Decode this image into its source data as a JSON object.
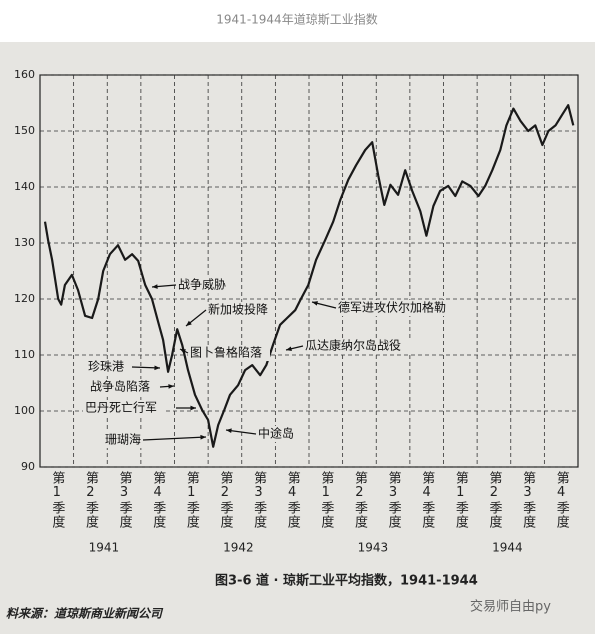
{
  "header": {
    "title": "1941-1944年道琼斯工业指数"
  },
  "chart_data": {
    "type": "line",
    "categories": [
      "第1季度",
      "第2季度",
      "第3季度",
      "第4季度",
      "第1季度",
      "第2季度",
      "第3季度",
      "第4季度",
      "第1季度",
      "第2季度",
      "第3季度",
      "第4季度",
      "第1季度",
      "第2季度",
      "第3季度",
      "第4季度"
    ],
    "years": [
      "1941",
      "1942",
      "1943",
      "1944"
    ],
    "xlim": [
      0,
      16
    ],
    "ylim": [
      90,
      160
    ],
    "yticks": [
      90,
      100,
      110,
      120,
      130,
      140,
      150,
      160
    ],
    "grid": true,
    "series": [
      {
        "color": "#1a1a1a",
        "x": [
          0.15,
          0.24,
          0.36,
          0.54,
          0.63,
          0.74,
          0.95,
          1.13,
          1.34,
          1.55,
          1.73,
          1.88,
          2.08,
          2.32,
          2.53,
          2.74,
          2.92,
          3.13,
          3.33,
          3.51,
          3.66,
          3.81,
          3.93,
          4.08,
          4.23,
          4.4,
          4.61,
          4.82,
          5.0,
          5.15,
          5.3,
          5.48,
          5.65,
          5.89,
          6.1,
          6.31,
          6.55,
          6.73,
          6.93,
          7.14,
          7.35,
          7.59,
          7.74,
          7.98,
          8.21,
          8.48,
          8.72,
          8.93,
          9.17,
          9.4,
          9.67,
          9.88,
          10.06,
          10.24,
          10.42,
          10.65,
          10.86,
          11.07,
          11.31,
          11.49,
          11.7,
          11.9,
          12.14,
          12.35,
          12.56,
          12.8,
          13.04,
          13.24,
          13.45,
          13.69,
          13.87,
          14.08,
          14.29,
          14.52,
          14.73,
          14.94,
          15.12,
          15.33,
          15.54,
          15.71,
          15.86
        ],
        "values": [
          133.8,
          130.5,
          127,
          120,
          119,
          122.5,
          124.3,
          121.6,
          117,
          116.6,
          120,
          125,
          128,
          129.6,
          127,
          128,
          126.8,
          122.5,
          120,
          116,
          112.7,
          107,
          110,
          114.6,
          111.8,
          107.3,
          102.9,
          100.2,
          98.4,
          93.6,
          97.5,
          100.2,
          102.9,
          104.6,
          107.3,
          108.2,
          106.4,
          108.2,
          111.8,
          115.4,
          116.6,
          118,
          119.8,
          122.5,
          127,
          130.5,
          133.8,
          137.7,
          141.3,
          143.9,
          146.6,
          148,
          142,
          136.8,
          140.4,
          138.6,
          143,
          139.3,
          135.7,
          131.3,
          136.6,
          139.3,
          140.2,
          138.4,
          141,
          140.2,
          138.4,
          140.2,
          143,
          146.6,
          151,
          154,
          151.8,
          150,
          151,
          147.5,
          150,
          151,
          153,
          154.6,
          151
        ]
      }
    ],
    "annotations": [
      "战争威胁",
      "新加坡投降",
      "珍珠港",
      "图卜鲁格陷落",
      "瓜达康纳尔岛战役",
      "德军进攻伏尔加格勒",
      "战争岛陷落",
      "巴丹死亡行军",
      "珊瑚海",
      "中途岛"
    ],
    "caption": "图3-6  道 · 琼斯工业平均指数，1941-1944",
    "source": "料来源：道琼斯商业新闻公司",
    "watermark": "交易师自由py"
  }
}
